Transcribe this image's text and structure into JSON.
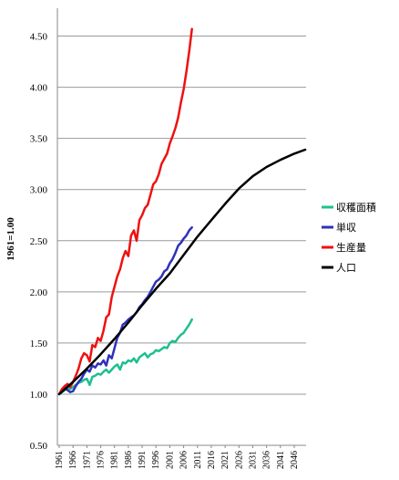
{
  "chart_data": {
    "type": "line",
    "title": "",
    "xlabel": "",
    "ylabel": "1961=1.00",
    "xlim": [
      1961,
      2050
    ],
    "ylim": [
      0.5,
      4.8
    ],
    "grid": "horizontal",
    "legend_position": "right",
    "y_ticks": [
      "0.50",
      "1.00",
      "1.50",
      "2.00",
      "2.50",
      "3.00",
      "3.50",
      "4.00",
      "4.50"
    ],
    "x_ticks": [
      "1961",
      "1966",
      "1971",
      "1976",
      "1981",
      "1986",
      "1991",
      "1996",
      "2001",
      "2006",
      "2011",
      "2016",
      "2021",
      "2026",
      "2031",
      "2036",
      "2041",
      "2046"
    ],
    "series": [
      {
        "name": "収穫面積",
        "color": "#1fbf8f",
        "x": [
          1961,
          1962,
          1963,
          1964,
          1965,
          1966,
          1967,
          1968,
          1969,
          1970,
          1971,
          1972,
          1973,
          1974,
          1975,
          1976,
          1977,
          1978,
          1979,
          1980,
          1981,
          1982,
          1983,
          1984,
          1985,
          1986,
          1987,
          1988,
          1989,
          1990,
          1991,
          1992,
          1993,
          1994,
          1995,
          1996,
          1997,
          1998,
          1999,
          2000,
          2001,
          2002,
          2003,
          2004,
          2005,
          2006,
          2007,
          2008,
          2009
        ],
        "y": [
          1.0,
          1.02,
          1.04,
          1.06,
          1.05,
          1.07,
          1.09,
          1.11,
          1.12,
          1.14,
          1.15,
          1.09,
          1.17,
          1.18,
          1.2,
          1.19,
          1.22,
          1.24,
          1.21,
          1.24,
          1.27,
          1.29,
          1.24,
          1.31,
          1.3,
          1.33,
          1.32,
          1.35,
          1.31,
          1.36,
          1.38,
          1.4,
          1.36,
          1.39,
          1.4,
          1.43,
          1.42,
          1.44,
          1.46,
          1.45,
          1.5,
          1.52,
          1.51,
          1.55,
          1.58,
          1.6,
          1.64,
          1.68,
          1.73
        ]
      },
      {
        "name": "単収",
        "color": "#2e32b8",
        "x": [
          1961,
          1962,
          1963,
          1964,
          1965,
          1966,
          1967,
          1968,
          1969,
          1970,
          1971,
          1972,
          1973,
          1974,
          1975,
          1976,
          1977,
          1978,
          1979,
          1980,
          1981,
          1982,
          1983,
          1984,
          1985,
          1986,
          1987,
          1988,
          1989,
          1990,
          1991,
          1992,
          1993,
          1994,
          1995,
          1996,
          1997,
          1998,
          1999,
          2000,
          2001,
          2002,
          2003,
          2004,
          2005,
          2006,
          2007,
          2008,
          2009
        ],
        "y": [
          1.0,
          1.04,
          1.06,
          1.04,
          1.02,
          1.03,
          1.08,
          1.12,
          1.15,
          1.2,
          1.24,
          1.22,
          1.28,
          1.26,
          1.3,
          1.29,
          1.33,
          1.28,
          1.38,
          1.35,
          1.45,
          1.55,
          1.6,
          1.68,
          1.7,
          1.73,
          1.75,
          1.77,
          1.8,
          1.85,
          1.88,
          1.92,
          1.95,
          2.0,
          2.05,
          2.1,
          2.12,
          2.15,
          2.2,
          2.22,
          2.28,
          2.32,
          2.38,
          2.45,
          2.48,
          2.52,
          2.55,
          2.6,
          2.63
        ]
      },
      {
        "name": "生産量",
        "color": "#ee1111",
        "x": [
          1961,
          1962,
          1963,
          1964,
          1965,
          1966,
          1967,
          1968,
          1969,
          1970,
          1971,
          1972,
          1973,
          1974,
          1975,
          1976,
          1977,
          1978,
          1979,
          1980,
          1981,
          1982,
          1983,
          1984,
          1985,
          1986,
          1987,
          1988,
          1989,
          1990,
          1991,
          1992,
          1993,
          1994,
          1995,
          1996,
          1997,
          1998,
          1999,
          2000,
          2001,
          2002,
          2003,
          2004,
          2005,
          2006,
          2007,
          2008,
          2009
        ],
        "y": [
          1.0,
          1.05,
          1.08,
          1.1,
          1.07,
          1.12,
          1.18,
          1.25,
          1.35,
          1.4,
          1.38,
          1.32,
          1.48,
          1.46,
          1.55,
          1.52,
          1.62,
          1.75,
          1.78,
          1.95,
          2.05,
          2.15,
          2.22,
          2.33,
          2.4,
          2.35,
          2.55,
          2.6,
          2.5,
          2.7,
          2.75,
          2.82,
          2.85,
          2.95,
          3.05,
          3.08,
          3.15,
          3.25,
          3.3,
          3.35,
          3.45,
          3.52,
          3.6,
          3.7,
          3.85,
          3.98,
          4.15,
          4.35,
          4.57
        ]
      },
      {
        "name": "人口",
        "color": "#000000",
        "x": [
          1961,
          1966,
          1971,
          1976,
          1981,
          1986,
          1991,
          1996,
          2001,
          2006,
          2011,
          2016,
          2021,
          2026,
          2031,
          2036,
          2041,
          2046,
          2050
        ],
        "y": [
          1.0,
          1.12,
          1.25,
          1.39,
          1.54,
          1.7,
          1.87,
          2.03,
          2.18,
          2.36,
          2.54,
          2.7,
          2.86,
          3.01,
          3.13,
          3.22,
          3.29,
          3.35,
          3.39
        ]
      }
    ]
  }
}
